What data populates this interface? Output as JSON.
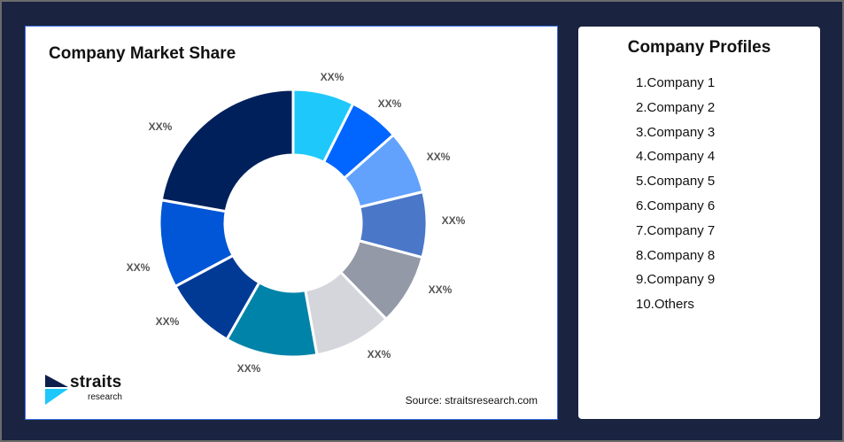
{
  "left_panel": {
    "title": "Company Market Share",
    "source": "Source: straitsresearch.com",
    "logo": {
      "name": "straits",
      "sub": "research"
    }
  },
  "right_panel": {
    "title": "Company Profiles",
    "items": [
      "1.Company 1",
      "2.Company 2",
      "3.Company 3",
      "4.Company 4",
      "5.Company 5",
      "6.Company 6",
      "7.Company 7",
      "8.Company 8",
      "9.Company 9",
      "10.Others"
    ]
  },
  "chart_data": {
    "type": "pie",
    "variant": "donut",
    "title": "Company Market Share",
    "note": "values estimated from slice angles; chart labels print XX%",
    "values": [
      7.4,
      6.1,
      7.7,
      7.9,
      8.6,
      9.4,
      11.1,
      8.9,
      10.6,
      22.2
    ],
    "labels": [
      "XX%",
      "XX%",
      "XX%",
      "XX%",
      "XX%",
      "XX%",
      "XX%",
      "XX%",
      "XX%",
      "XX%"
    ],
    "colors": [
      "#1ec8fb",
      "#0066ff",
      "#62a2fc",
      "#4a77c8",
      "#9399a6",
      "#d4d6db",
      "#0083a8",
      "#003a95",
      "#0056d6",
      "#00205c"
    ]
  }
}
